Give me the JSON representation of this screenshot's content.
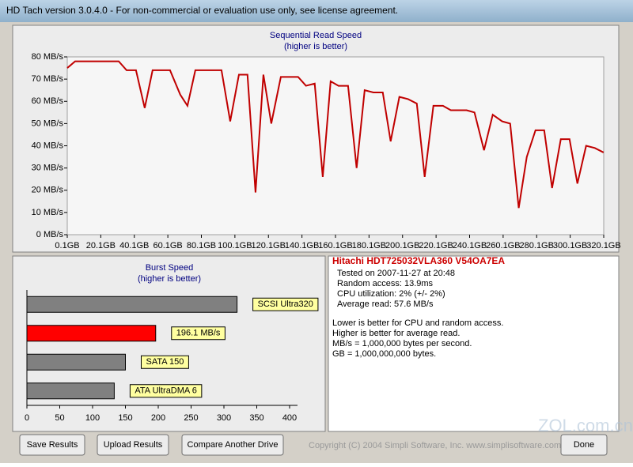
{
  "window": {
    "title": "HD Tach version 3.0.4.0  - For non-commercial or evaluation use only, see license agreement."
  },
  "chart_data": [
    {
      "type": "line",
      "title": "Sequential Read Speed",
      "subtitle": "(higher is better)",
      "color": "#c00000",
      "x": [
        0.1,
        4.8,
        30.8,
        35.5,
        41.1,
        46.3,
        51.0,
        61.4,
        67.5,
        71.8,
        76.5,
        92.1,
        97.3,
        102.5,
        107.6,
        112.4,
        117.1,
        121.8,
        127.5,
        137.8,
        142.5,
        147.7,
        152.5,
        157.2,
        161.9,
        167.6,
        172.7,
        177.5,
        182.7,
        188.3,
        193.0,
        198.2,
        203.4,
        208.6,
        213.3,
        218.5,
        224.2,
        228.9,
        238.3,
        243.0,
        248.7,
        253.9,
        259.5,
        264.3,
        269.4,
        274.2,
        279.4,
        284.6,
        289.3,
        294.5,
        299.7,
        304.4,
        309.6,
        314.8,
        320.0
      ],
      "values": [
        75,
        78,
        78,
        74,
        74,
        57,
        74,
        74,
        63,
        58,
        74,
        74,
        51,
        72,
        72,
        19,
        72,
        50,
        71,
        71,
        67,
        68,
        26,
        69,
        67,
        67,
        30,
        65,
        64,
        64,
        42,
        62,
        61,
        59,
        26,
        58,
        58,
        56,
        56,
        55,
        38,
        54,
        51,
        50,
        12,
        35,
        47,
        47,
        21,
        43,
        43,
        23,
        40,
        39,
        37
      ],
      "xlim": [
        0.1,
        320.1
      ],
      "xticks": [
        {
          "value": 0.1,
          "label": "0.1GB"
        },
        {
          "value": 20.1,
          "label": "20.1GB"
        },
        {
          "value": 40.1,
          "label": "40.1GB"
        },
        {
          "value": 60.1,
          "label": "60.1GB"
        },
        {
          "value": 80.1,
          "label": "80.1GB"
        },
        {
          "value": 100.1,
          "label": "100.1GB"
        },
        {
          "value": 120.1,
          "label": "120.1GB"
        },
        {
          "value": 140.1,
          "label": "140.1GB"
        },
        {
          "value": 160.1,
          "label": "160.1GB"
        },
        {
          "value": 180.1,
          "label": "180.1GB"
        },
        {
          "value": 200.1,
          "label": "200.1GB"
        },
        {
          "value": 220.1,
          "label": "220.1GB"
        },
        {
          "value": 240.1,
          "label": "240.1GB"
        },
        {
          "value": 260.1,
          "label": "260.1GB"
        },
        {
          "value": 280.1,
          "label": "280.1GB"
        },
        {
          "value": 300.1,
          "label": "300.1GB"
        },
        {
          "value": 320.1,
          "label": "320.1GB"
        }
      ],
      "ylim": [
        0,
        80
      ],
      "yticks": [
        {
          "value": 0,
          "label": "0 MB/s"
        },
        {
          "value": 10,
          "label": "10 MB/s"
        },
        {
          "value": 20,
          "label": "20 MB/s"
        },
        {
          "value": 30,
          "label": "30 MB/s"
        },
        {
          "value": 40,
          "label": "40 MB/s"
        },
        {
          "value": 50,
          "label": "50 MB/s"
        },
        {
          "value": 60,
          "label": "60 MB/s"
        },
        {
          "value": 70,
          "label": "70 MB/s"
        },
        {
          "value": 80,
          "label": "80 MB/s"
        }
      ]
    },
    {
      "type": "hbar",
      "title": "Burst Speed",
      "subtitle": "(higher is better)",
      "categories": [
        "SCSI Ultra320",
        null,
        "SATA 150",
        "ATA UltraDMA 6"
      ],
      "values": [
        320,
        196.1,
        150,
        133
      ],
      "value_labels": [
        null,
        "196.1 MB/s",
        null,
        null
      ],
      "colors": [
        "#808080",
        "#ff0000",
        "#808080",
        "#808080"
      ],
      "xlim": [
        0,
        400
      ],
      "xticks": [
        0,
        50,
        100,
        150,
        200,
        250,
        300,
        350,
        400
      ]
    }
  ],
  "info": {
    "drive": "Hitachi HDT725032VLA360 V54OA7EA",
    "details": [
      "Tested on 2007-11-27 at 20:48",
      "Random access: 13.9ms",
      "CPU utilization: 2% (+/- 2%)",
      "Average read: 57.6 MB/s"
    ],
    "notes": [
      "Lower is better for CPU and random access.",
      "Higher is better for average read.",
      "MB/s = 1,000,000 bytes per second.",
      "GB = 1,000,000,000 bytes."
    ]
  },
  "buttons": [
    "Save Results",
    "Upload Results",
    "Compare Another Drive",
    "Done"
  ],
  "copyright": "Copyright (C) 2004 Simpli Software, Inc. www.simplisoftware.com",
  "watermark": "ZOL.com.cn"
}
